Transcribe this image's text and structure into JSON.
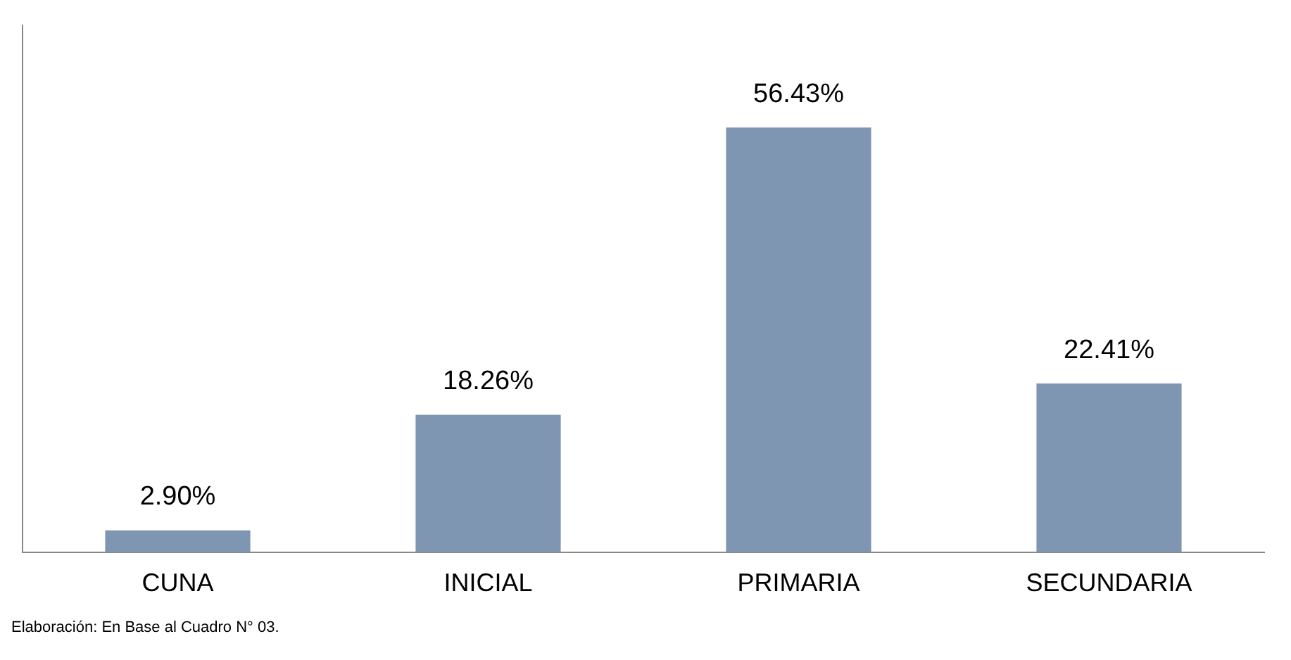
{
  "chart_data": {
    "type": "bar",
    "categories": [
      "CUNA",
      "INICIAL",
      "PRIMARIA",
      "SECUNDARIA"
    ],
    "values": [
      2.9,
      18.26,
      56.43,
      22.41
    ],
    "value_labels": [
      "2.90%",
      "18.26%",
      "56.43%",
      "22.41%"
    ],
    "color": "#7f96b2",
    "grid": false,
    "legend": false,
    "annotations": [
      "Elaboración: En Base al Cuadro N° 03."
    ]
  }
}
